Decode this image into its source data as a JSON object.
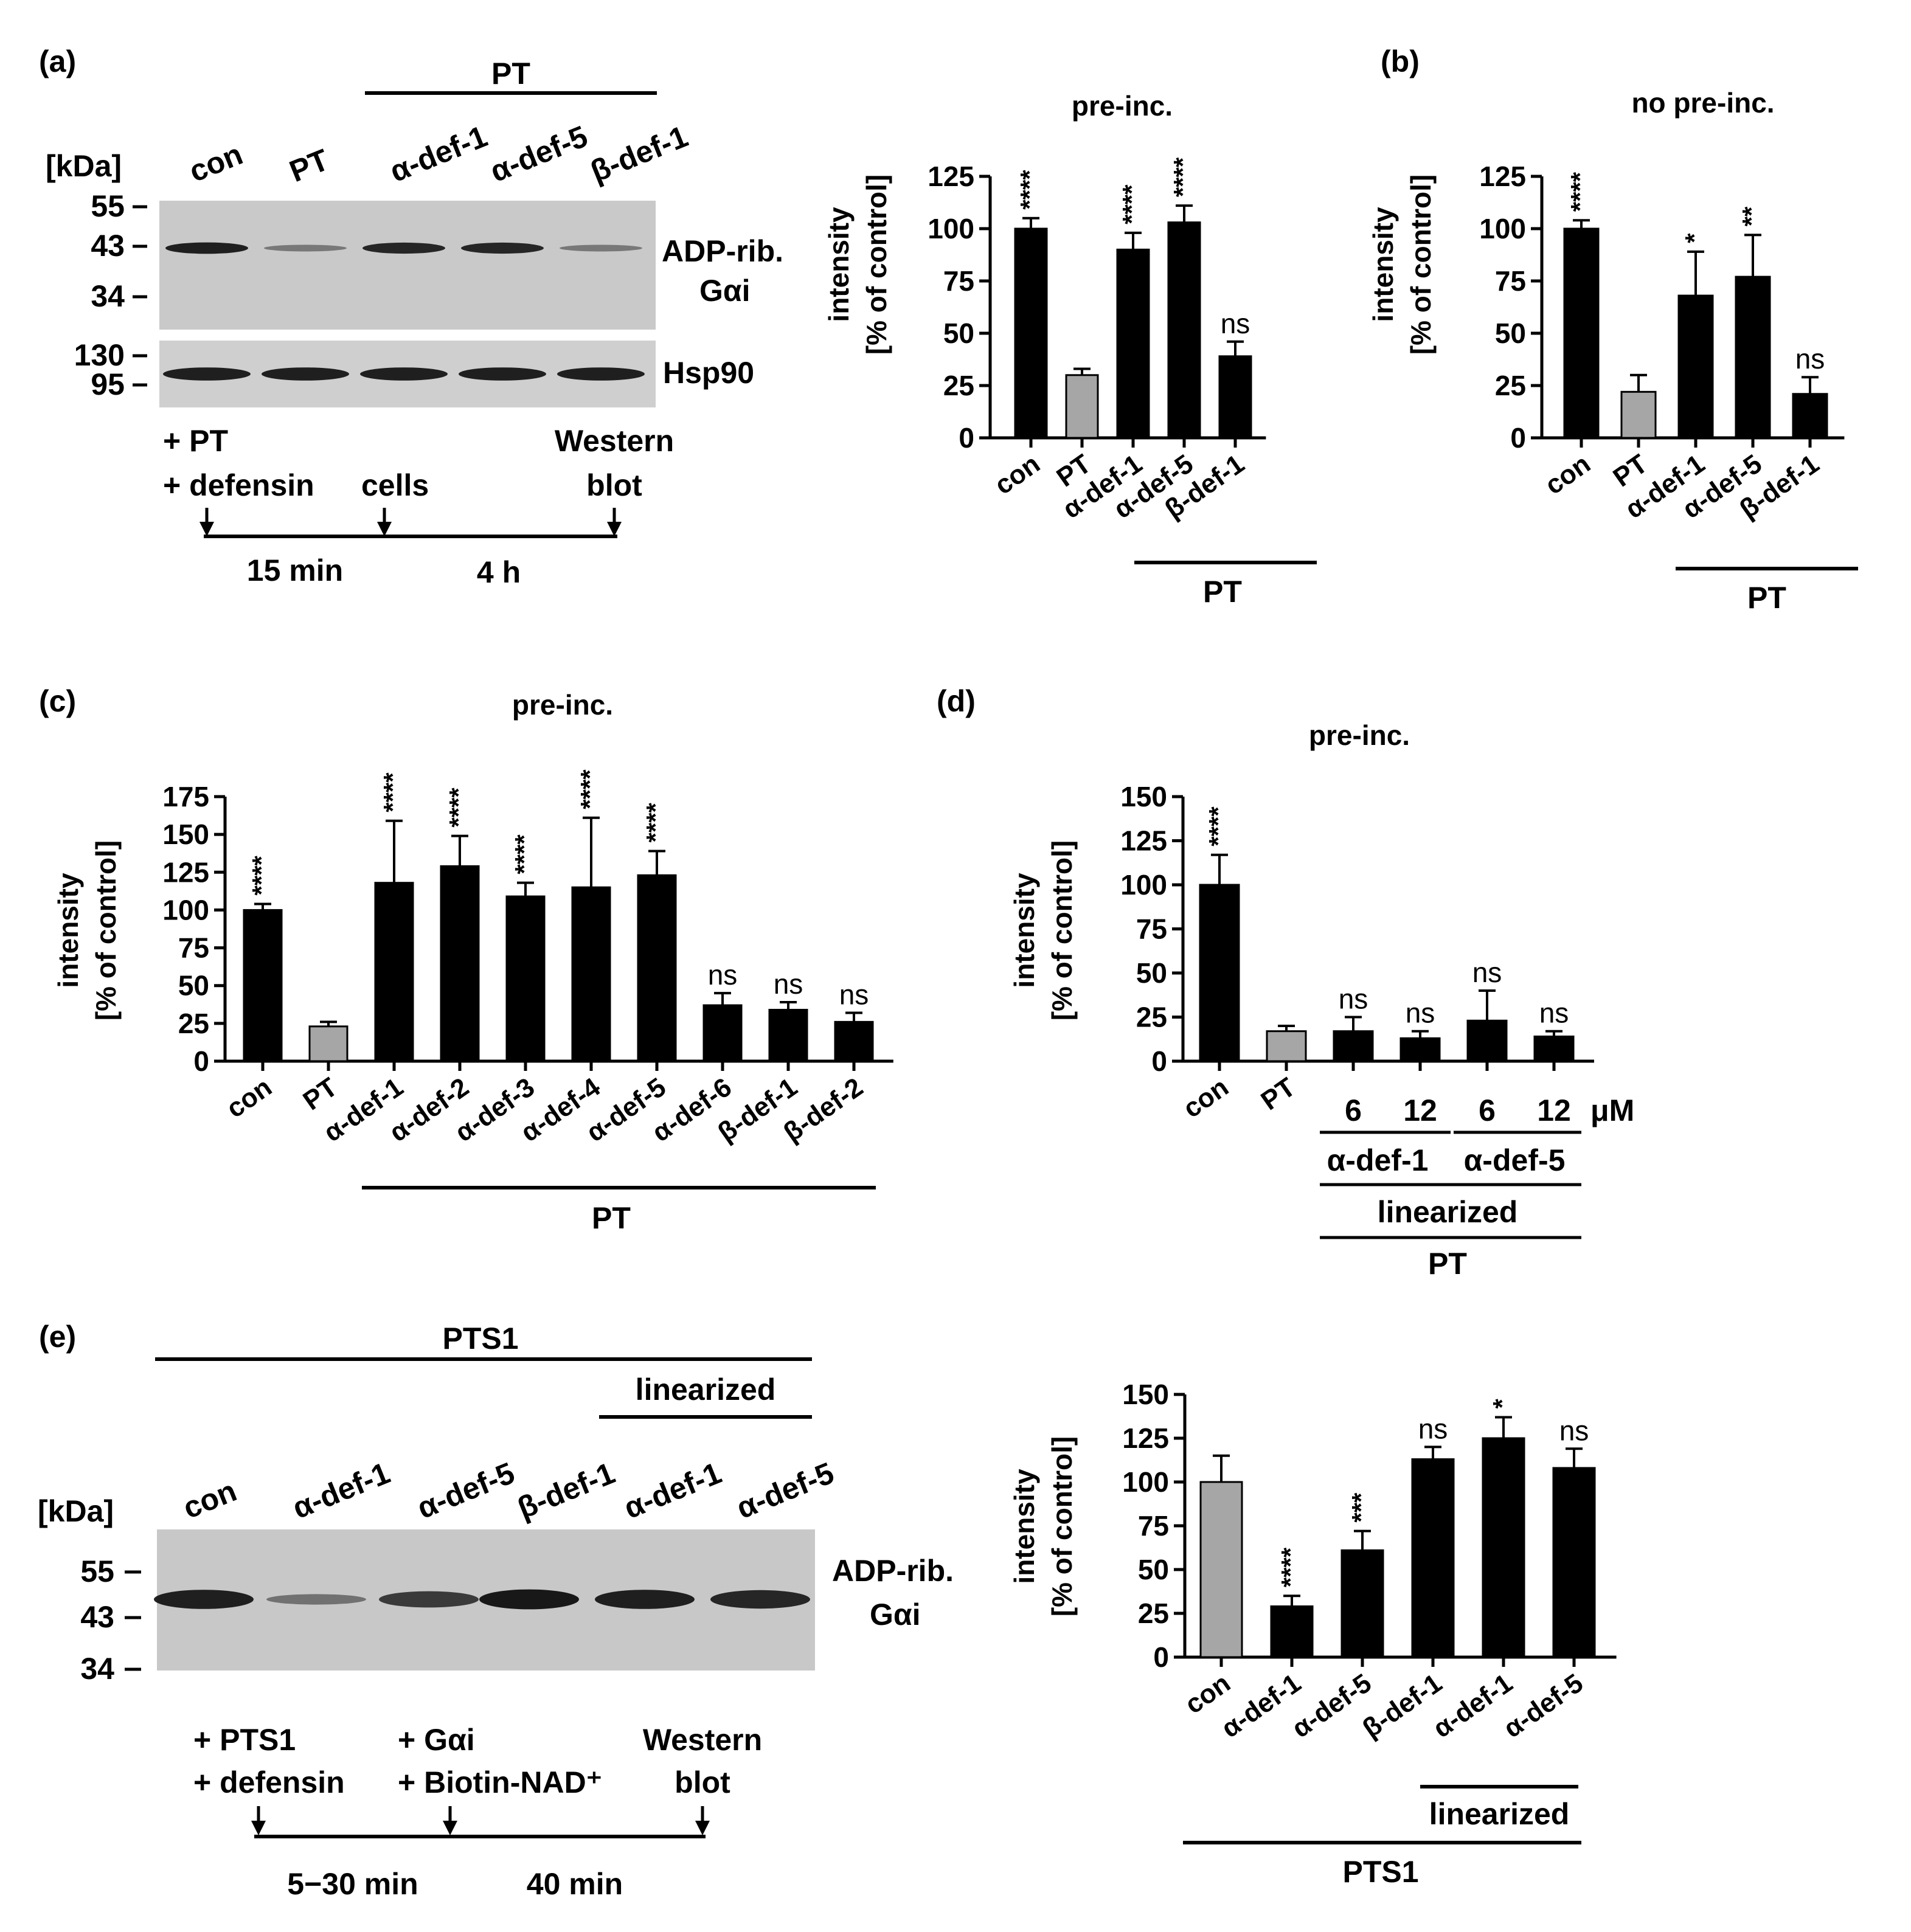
{
  "panels": {
    "a": {
      "letter": "(a)",
      "treatment_header": "PT",
      "kda_label": "[kDa]",
      "lanes": [
        "con",
        "PT",
        "α-def-1",
        "α-def-5",
        "β-def-1"
      ],
      "markers_top": [
        "55",
        "43",
        "34"
      ],
      "markers_bottom": [
        "130",
        "95"
      ],
      "band_label_top_1": "ADP-rib.",
      "band_label_top_2": "Gαi",
      "band_label_bottom": "Hsp90",
      "band_intensity_top": [
        0.9,
        0.25,
        0.85,
        0.85,
        0.25
      ],
      "band_intensity_bottom": [
        0.9,
        0.9,
        0.9,
        0.9,
        0.9
      ],
      "timeline": {
        "step1_line1": "+ PT",
        "step1_line2": "+ defensin",
        "step2": "cells",
        "step3_line1": "Western",
        "step3_line2": "blot",
        "interval1": "15 min",
        "interval2": "4 h"
      }
    },
    "a_chart": {
      "title": "pre-inc.",
      "bottom_label": "PT"
    },
    "b": {
      "letter": "(b)",
      "title": "no pre-inc.",
      "bottom_label": "PT"
    },
    "c": {
      "letter": "(c)",
      "title": "pre-inc.",
      "bottom_label": "PT"
    },
    "d": {
      "letter": "(d)",
      "title": "pre-inc.",
      "unit": "μM",
      "group1": "α-def-1",
      "group2": "α-def-5",
      "linearized": "linearized",
      "bottom_label": "PT"
    },
    "e": {
      "letter": "(e)",
      "treatment_header": "PTS1",
      "linearized_header": "linearized",
      "kda_label": "[kDa]",
      "lanes": [
        "con",
        "α-def-1",
        "α-def-5",
        "β-def-1",
        "α-def-1",
        "α-def-5"
      ],
      "markers": [
        "55",
        "43",
        "34"
      ],
      "band_label_1": "ADP-rib.",
      "band_label_2": "Gαi",
      "band_intensity": [
        0.9,
        0.3,
        0.7,
        0.95,
        0.9,
        0.85
      ],
      "timeline": {
        "step1_line1": "+ PTS1",
        "step1_line2": "+ defensin",
        "step2_line1": "+ Gαi",
        "step2_line2": "+ Biotin-NAD⁺",
        "step3_line1": "Western",
        "step3_line2": "blot",
        "interval1": "5−30 min",
        "interval2": "40 min"
      },
      "chart_linearized": "linearized",
      "chart_bottom_label": "PTS1"
    }
  },
  "colors": {
    "bar": "#000000",
    "pt_bar": "#a6a6a6",
    "blot_bg": "#c8c8c8",
    "band": "#1a1a1a"
  },
  "chart_data": [
    {
      "id": "a_chart",
      "type": "bar",
      "title": "pre-inc.",
      "ylabel": "intensity [% of control]",
      "categories": [
        "con",
        "PT",
        "α-def-1",
        "α-def-5",
        "β-def-1"
      ],
      "values": [
        100,
        30,
        90,
        103,
        39
      ],
      "errors": [
        5,
        3,
        8,
        8,
        7
      ],
      "significance": [
        "****",
        "",
        "****",
        "****",
        "ns"
      ],
      "ylim": [
        0,
        125
      ],
      "yticks": [
        0,
        25,
        50,
        75,
        100,
        125
      ]
    },
    {
      "id": "b_chart",
      "type": "bar",
      "title": "no pre-inc.",
      "ylabel": "intensity [% of control]",
      "categories": [
        "con",
        "PT",
        "α-def-1",
        "α-def-5",
        "β-def-1"
      ],
      "values": [
        100,
        22,
        68,
        77,
        21
      ],
      "errors": [
        4,
        8,
        21,
        20,
        8
      ],
      "significance": [
        "****",
        "",
        "*",
        "**",
        "ns"
      ],
      "ylim": [
        0,
        125
      ],
      "yticks": [
        0,
        25,
        50,
        75,
        100,
        125
      ]
    },
    {
      "id": "c_chart",
      "type": "bar",
      "title": "pre-inc.",
      "ylabel": "intensity [% of control]",
      "categories": [
        "con",
        "PT",
        "α-def-1",
        "α-def-2",
        "α-def-3",
        "α-def-4",
        "α-def-5",
        "α-def-6",
        "β-def-1",
        "β-def-2"
      ],
      "values": [
        100,
        23,
        118,
        129,
        109,
        115,
        123,
        37,
        34,
        26
      ],
      "errors": [
        4,
        3,
        41,
        20,
        9,
        46,
        16,
        8,
        5,
        6
      ],
      "significance": [
        "****",
        "",
        "****",
        "****",
        "****",
        "****",
        "****",
        "ns",
        "ns",
        "ns"
      ],
      "ylim": [
        0,
        175
      ],
      "yticks": [
        0,
        25,
        50,
        75,
        100,
        125,
        150,
        175
      ]
    },
    {
      "id": "d_chart",
      "type": "bar",
      "title": "pre-inc.",
      "ylabel": "intensity [% of control]",
      "categories": [
        "con",
        "PT",
        "6",
        "12",
        "6",
        "12"
      ],
      "values": [
        100,
        17,
        17,
        13,
        23,
        14
      ],
      "errors": [
        17,
        3,
        8,
        4,
        17,
        3
      ],
      "significance": [
        "****",
        "",
        "ns",
        "ns",
        "ns",
        "ns"
      ],
      "ylim": [
        0,
        150
      ],
      "yticks": [
        0,
        25,
        50,
        75,
        100,
        125,
        150
      ]
    },
    {
      "id": "e_chart",
      "type": "bar",
      "ylabel": "intensity [% of control]",
      "categories": [
        "con",
        "α-def-1",
        "α-def-5",
        "β-def-1",
        "α-def-1",
        "α-def-5"
      ],
      "values": [
        100,
        29,
        61,
        113,
        125,
        108
      ],
      "errors": [
        15,
        6,
        11,
        7,
        12,
        11
      ],
      "significance": [
        "",
        "****",
        "***",
        "ns",
        "*",
        "ns"
      ],
      "ylim": [
        0,
        150
      ],
      "yticks": [
        0,
        25,
        50,
        75,
        100,
        125,
        150
      ]
    }
  ]
}
